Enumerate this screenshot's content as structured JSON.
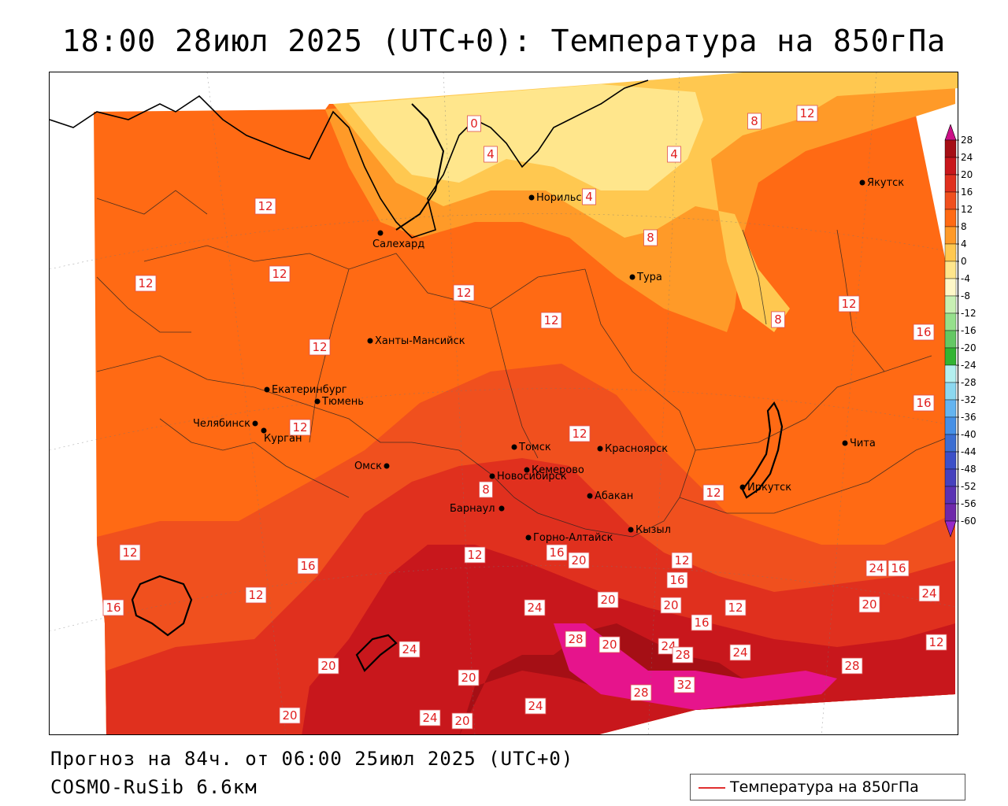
{
  "title": "18:00 28июл 2025 (UTC+0): Температура на 850гПа",
  "footer": {
    "forecast": "Прогноз на 84ч. от 06:00 25июл 2025 (UTC+0)",
    "model": "COSMO-RuSib 6.6км"
  },
  "legend": {
    "label": "Температура на 850гПа",
    "line_color": "#e03030"
  },
  "colorbar": {
    "levels": [
      "28",
      "24",
      "20",
      "16",
      "12",
      "8",
      "4",
      "0",
      "-4",
      "-8",
      "-12",
      "-16",
      "-20",
      "-24",
      "-28",
      "-32",
      "-36",
      "-40",
      "-44",
      "-48",
      "-52",
      "-56",
      "-60"
    ],
    "colors": [
      "#a50f15",
      "#c8171c",
      "#e0301e",
      "#f0501e",
      "#ff6a14",
      "#ff9a28",
      "#ffc850",
      "#ffe68c",
      "#fff8c8",
      "#c8f0b4",
      "#96e08c",
      "#64c864",
      "#32b432",
      "#b4f0f0",
      "#8cd8f0",
      "#64b4f0",
      "#4690e6",
      "#3c6ed2",
      "#3c50c8",
      "#4641be",
      "#5a32b4",
      "#6e28aa",
      "#8c1eb4"
    ],
    "top_cap_color": "#cc1088",
    "bottom_cap_color": "#9628c8"
  },
  "cities": [
    {
      "name": "Салехард"
    },
    {
      "name": "Норильск"
    },
    {
      "name": "Якутск"
    },
    {
      "name": "Тура"
    },
    {
      "name": "Ханты-Мансийск"
    },
    {
      "name": "Екатеринбург"
    },
    {
      "name": "Тюмень"
    },
    {
      "name": "Челябинск"
    },
    {
      "name": "Курган"
    },
    {
      "name": "Омск"
    },
    {
      "name": "Новосибирск"
    },
    {
      "name": "Томск"
    },
    {
      "name": "Кемерово"
    },
    {
      "name": "Красноярск"
    },
    {
      "name": "Абакан"
    },
    {
      "name": "Барнаул"
    },
    {
      "name": "Горно-Алтайск"
    },
    {
      "name": "Кызыл"
    },
    {
      "name": "Иркутск"
    },
    {
      "name": "Чита"
    }
  ],
  "contour_labels": [
    "12",
    "12",
    "12",
    "12",
    "12",
    "12",
    "12",
    "12",
    "8",
    "4",
    "4",
    "0",
    "4",
    "8",
    "8",
    "12",
    "8",
    "12",
    "12",
    "16",
    "16",
    "12",
    "12",
    "12",
    "20",
    "16",
    "20",
    "16",
    "12",
    "24",
    "24",
    "20",
    "16",
    "12",
    "20",
    "16",
    "24",
    "20",
    "24",
    "24",
    "28",
    "20",
    "24",
    "28",
    "32",
    "24",
    "28",
    "20",
    "20",
    "24",
    "20",
    "28",
    "24",
    "20",
    "12",
    "16",
    "12",
    "16"
  ]
}
